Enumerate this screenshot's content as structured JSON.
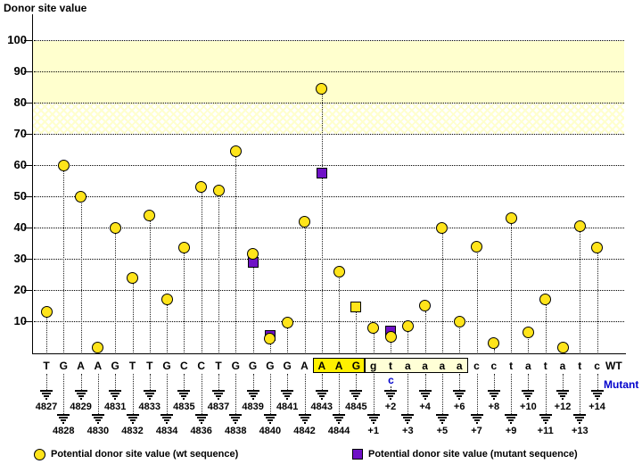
{
  "title": "Donor site value",
  "y_axis": {
    "label": "Donor site value",
    "ticks": [
      100,
      90,
      80,
      70,
      60,
      50,
      40,
      30,
      20,
      10
    ]
  },
  "colors": {
    "wt_marker": "#FFE41A",
    "mutant_marker": "#6F11C6",
    "threshold_band": "#FFFFCE",
    "donor_box_highlight": "#FFF000",
    "donor_box_context": "#FFFFD6",
    "mutant_text": "#0000CC"
  },
  "legend": {
    "wt": {
      "marker": "yellow-circle",
      "label": "Potential donor site value (wt sequence)"
    },
    "mutant": {
      "marker": "purple-square",
      "label": "Potential donor site value (mutant sequence)"
    }
  },
  "sequence_labels": {
    "wt": "WT",
    "mutant": "Mutant"
  },
  "mutation": {
    "position": "+2",
    "column_index": 20,
    "wt_base": "t",
    "mutant_base": "c"
  },
  "boxed_regions": [
    {
      "bases": "AAG",
      "start_index": 16,
      "end_index": 18,
      "fill_var": "--boxy"
    },
    {
      "bases": "gtaaaa",
      "start_index": 19,
      "end_index": 24,
      "fill_var": "--boxc"
    }
  ],
  "chart_data": {
    "type": "scatter",
    "title": "Donor site value",
    "ylabel": "Donor site value",
    "ylim": [
      0,
      107
    ],
    "grid": "dotted horizontal every 10",
    "legend_position": "bottom",
    "threshold_bands": [
      {
        "range": [
          80,
          100
        ],
        "style": "solid-cream"
      },
      {
        "range": [
          70,
          80
        ],
        "style": "hatched-cream"
      }
    ],
    "series_note": "wt = yellow circle, mutant = purple square; same=true means wt and mutant coincide (yellow square)",
    "columns": [
      {
        "pos": "4827",
        "base": "T",
        "wt": 13
      },
      {
        "pos": "4828",
        "base": "G",
        "wt": 60
      },
      {
        "pos": "4829",
        "base": "A",
        "wt": 50
      },
      {
        "pos": "4830",
        "base": "A",
        "wt": 1.5
      },
      {
        "pos": "4831",
        "base": "G",
        "wt": 40
      },
      {
        "pos": "4832",
        "base": "T",
        "wt": 24
      },
      {
        "pos": "4833",
        "base": "T",
        "wt": 44
      },
      {
        "pos": "4834",
        "base": "G",
        "wt": 17
      },
      {
        "pos": "4835",
        "base": "C",
        "wt": 33.5
      },
      {
        "pos": "4836",
        "base": "C",
        "wt": 53
      },
      {
        "pos": "4837",
        "base": "T",
        "wt": 52
      },
      {
        "pos": "4838",
        "base": "G",
        "wt": 64.5
      },
      {
        "pos": "4839",
        "base": "G",
        "wt": 31.5,
        "mutant": 29
      },
      {
        "pos": "4840",
        "base": "G",
        "wt": 4.5,
        "mutant": 5.5
      },
      {
        "pos": "4841",
        "base": "G",
        "wt": 9.5
      },
      {
        "pos": "4842",
        "base": "A",
        "wt": 42
      },
      {
        "pos": "4843",
        "base": "A",
        "wt": 84.5,
        "mutant": 57.5
      },
      {
        "pos": "4844",
        "base": "A",
        "wt": 26
      },
      {
        "pos": "4845",
        "base": "G",
        "wt": 14.5,
        "mutant": 14.5,
        "same": true
      },
      {
        "pos": "+1",
        "base": "g",
        "wt": 8
      },
      {
        "pos": "+2",
        "base": "t",
        "wt": 5,
        "mutant": 7
      },
      {
        "pos": "+3",
        "base": "a",
        "wt": 8.5
      },
      {
        "pos": "+4",
        "base": "a",
        "wt": 15
      },
      {
        "pos": "+5",
        "base": "a",
        "wt": 40
      },
      {
        "pos": "+6",
        "base": "a",
        "wt": 10
      },
      {
        "pos": "+7",
        "base": "c",
        "wt": 34
      },
      {
        "pos": "+8",
        "base": "c",
        "wt": 3
      },
      {
        "pos": "+9",
        "base": "t",
        "wt": 43
      },
      {
        "pos": "+10",
        "base": "a",
        "wt": 6.5
      },
      {
        "pos": "+11",
        "base": "t",
        "wt": 17
      },
      {
        "pos": "+12",
        "base": "a",
        "wt": 1.5
      },
      {
        "pos": "+13",
        "base": "t",
        "wt": 40.5
      },
      {
        "pos": "+14",
        "base": "c",
        "wt": 33.5
      }
    ]
  }
}
